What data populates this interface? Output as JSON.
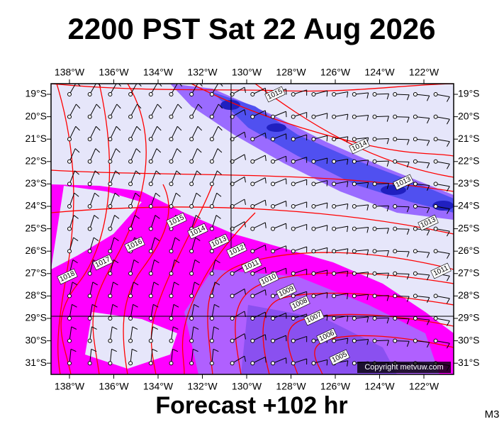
{
  "header": {
    "title": "2200 PST Sat 22 Aug 2026"
  },
  "longitudes": [
    "138°W",
    "136°W",
    "134°W",
    "132°W",
    "130°W",
    "128°W",
    "126°W",
    "124°W",
    "122°W"
  ],
  "latitudes": [
    "19°S",
    "20°S",
    "21°S",
    "22°S",
    "23°S",
    "24°S",
    "25°S",
    "26°S",
    "27°S",
    "28°S",
    "29°S",
    "30°S",
    "31°S"
  ],
  "isobar_labels": [
    "1015",
    "1014",
    "1013",
    "1013",
    "1011",
    "1015",
    "1014",
    "1013",
    "1012",
    "1011",
    "1010",
    "1009",
    "1008",
    "1007",
    "1006",
    "1005",
    "1016",
    "1017",
    "1018"
  ],
  "copyright": "Copyright metvuw.com",
  "footer": {
    "forecast": "Forecast +102 hr",
    "model": "M3"
  }
}
